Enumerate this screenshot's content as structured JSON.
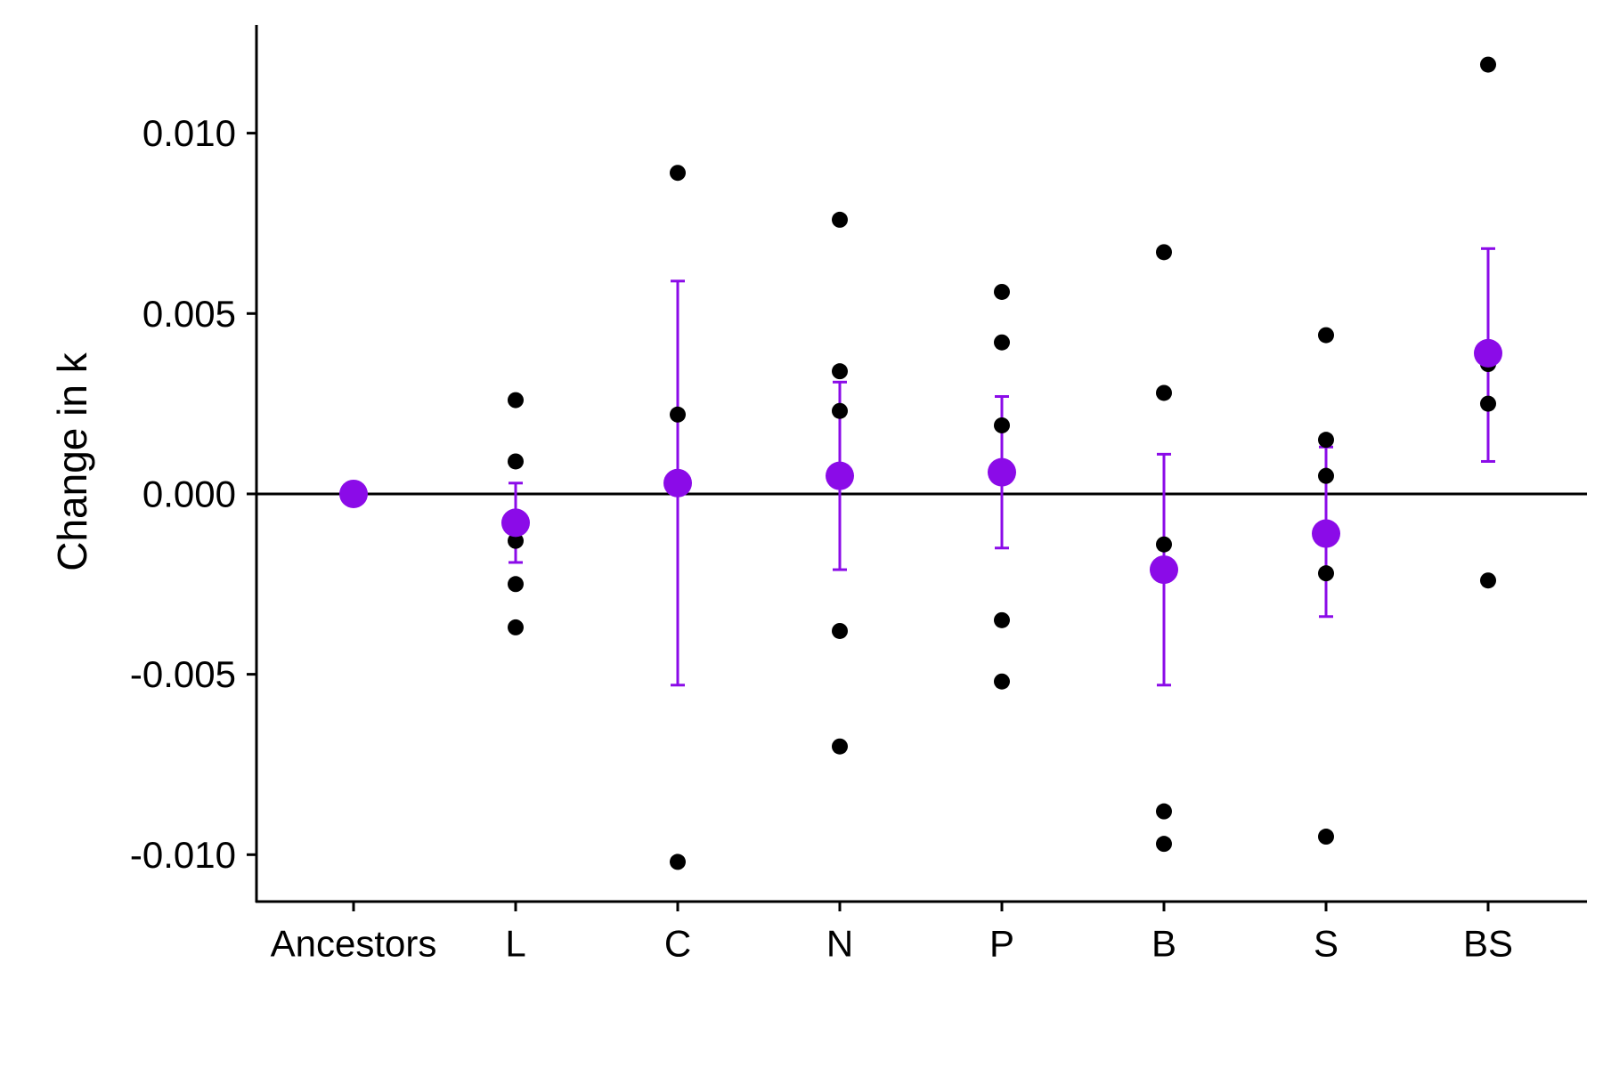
{
  "chart_data": {
    "type": "scatter",
    "title": "",
    "xlabel": "",
    "ylabel": "Change in k",
    "categories": [
      "Ancestors",
      "L",
      "C",
      "N",
      "P",
      "B",
      "S",
      "BS"
    ],
    "ylim": [
      -0.0113,
      0.013
    ],
    "yticks": [
      0.01,
      0.005,
      0.0,
      -0.005,
      -0.01
    ],
    "ytick_labels": [
      "0.010",
      "0.005",
      "0.000",
      "-0.005",
      "-0.010"
    ],
    "reference_line_y": 0.0,
    "grid": false,
    "legend": "none",
    "series": [
      {
        "role": "replicates",
        "color": "#000000",
        "points": {
          "L": [
            0.0026,
            0.0009,
            -0.0013,
            -0.0025,
            -0.0037
          ],
          "C": [
            0.0089,
            0.0022,
            -0.0102
          ],
          "N": [
            0.0076,
            0.0034,
            0.0023,
            -0.0038,
            -0.007
          ],
          "P": [
            0.0056,
            0.0042,
            0.0019,
            -0.0035,
            -0.0052
          ],
          "B": [
            0.0067,
            0.0028,
            -0.0014,
            -0.0088,
            -0.0097
          ],
          "S": [
            0.0044,
            0.0015,
            0.0005,
            -0.0022,
            -0.0095
          ],
          "BS": [
            0.0119,
            0.0036,
            0.0025,
            -0.0024
          ]
        }
      },
      {
        "role": "mean",
        "color": "#8B0BE8",
        "values": [
          0.0,
          -0.0008,
          0.0003,
          0.0005,
          0.0006,
          -0.0021,
          -0.0011,
          0.0039
        ],
        "err_low": [
          null,
          -0.0019,
          -0.0053,
          -0.0021,
          -0.0015,
          -0.0053,
          -0.0034,
          0.0009
        ],
        "err_high": [
          null,
          0.0003,
          0.0059,
          0.0031,
          0.0027,
          0.0011,
          0.0013,
          0.0068
        ]
      }
    ]
  }
}
